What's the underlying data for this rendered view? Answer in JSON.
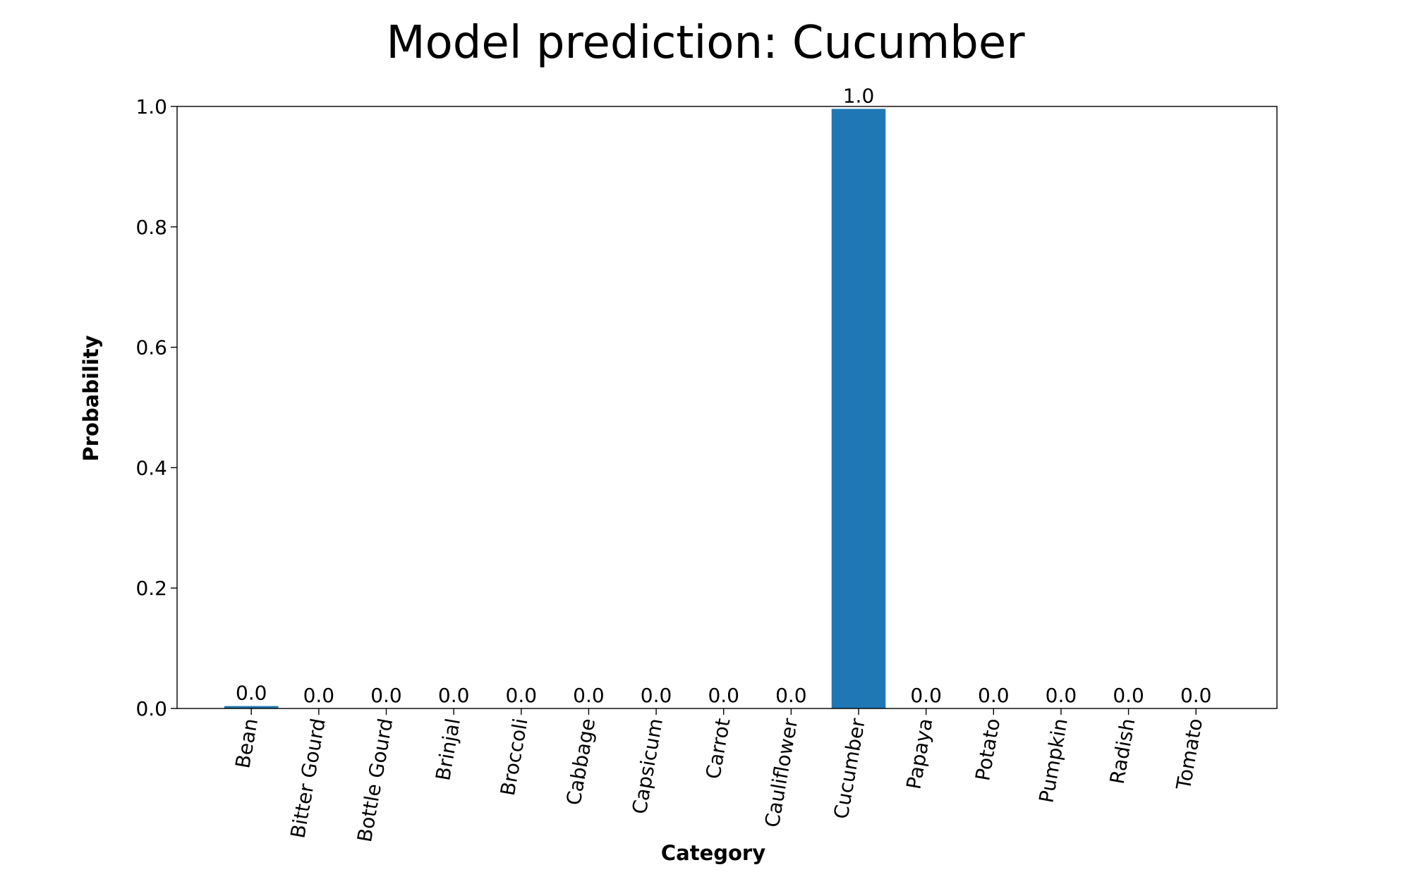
{
  "chart_data": {
    "type": "bar",
    "title": "Model prediction: Cucumber",
    "xlabel": "Category",
    "ylabel": "Probability",
    "categories": [
      "Bean",
      "Bitter Gourd",
      "Bottle Gourd",
      "Brinjal",
      "Broccoli",
      "Cabbage",
      "Capsicum",
      "Carrot",
      "Cauliflower",
      "Cucumber",
      "Papaya",
      "Potato",
      "Pumpkin",
      "Radish",
      "Tomato"
    ],
    "values": [
      0.004,
      0.0,
      0.0,
      0.0,
      0.0,
      0.0,
      0.0,
      0.0,
      0.0,
      0.996,
      0.0,
      0.0,
      0.0,
      0.0,
      0.0
    ],
    "value_labels": [
      "0.0",
      "0.0",
      "0.0",
      "0.0",
      "0.0",
      "0.0",
      "0.0",
      "0.0",
      "0.0",
      "1.0",
      "0.0",
      "0.0",
      "0.0",
      "0.0",
      "0.0"
    ],
    "ylim": [
      0,
      1.0
    ],
    "yticks": [
      0.0,
      0.2,
      0.4,
      0.6,
      0.8,
      1.0
    ],
    "ytick_labels": [
      "0.0",
      "0.2",
      "0.4",
      "0.6",
      "0.8",
      "1.0"
    ],
    "xtick_rotation_deg": -80,
    "grid": false,
    "legend": "none",
    "bar_color": "#1f77b4"
  }
}
